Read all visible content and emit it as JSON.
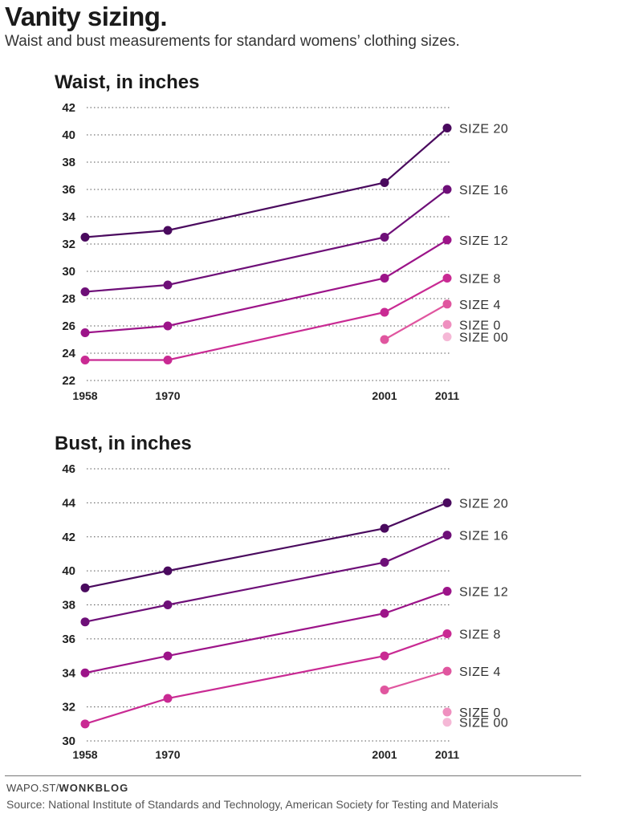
{
  "header": {
    "title": "Vanity sizing.",
    "subtitle": "Waist and bust measurements for standard womens’ clothing sizes."
  },
  "footer": {
    "credit_prefix": "WAPO.ST/",
    "credit_brand": "WONKBLOG",
    "source": "Source: National Institute of Standards and Technology, American Society for Testing and Materials"
  },
  "chart_data": [
    {
      "type": "line",
      "title": "Waist, in inches",
      "x": [
        1958,
        1970,
        2001,
        2011
      ],
      "ylim": [
        22,
        42
      ],
      "yticks": [
        22,
        24,
        26,
        28,
        30,
        32,
        34,
        36,
        38,
        40,
        42
      ],
      "grid": true,
      "legend": "direct labels at right end of lines",
      "series": [
        {
          "name": "SIZE 20",
          "color": "#4a0a5e",
          "x": [
            1958,
            1970,
            2001,
            2011
          ],
          "values": [
            32.5,
            33,
            36.5,
            40.5
          ]
        },
        {
          "name": "SIZE 16",
          "color": "#6e0f78",
          "x": [
            1958,
            1970,
            2001,
            2011
          ],
          "values": [
            28.5,
            29,
            32.5,
            36
          ]
        },
        {
          "name": "SIZE 12",
          "color": "#9c1489",
          "x": [
            1958,
            1970,
            2001,
            2011
          ],
          "values": [
            25.5,
            26,
            29.5,
            32.3
          ]
        },
        {
          "name": "SIZE 8",
          "color": "#c92a93",
          "x": [
            1958,
            1970,
            2001,
            2011
          ],
          "values": [
            23.5,
            23.5,
            27,
            29.5
          ]
        },
        {
          "name": "SIZE 4",
          "color": "#e0569f",
          "x": [
            2001,
            2011
          ],
          "values": [
            25,
            27.6
          ]
        },
        {
          "name": "SIZE 0",
          "color": "#ef8fbf",
          "x": [
            2011
          ],
          "values": [
            26.1
          ]
        },
        {
          "name": "SIZE 00",
          "color": "#f5b8d6",
          "x": [
            2011
          ],
          "values": [
            25.2
          ]
        }
      ]
    },
    {
      "type": "line",
      "title": "Bust, in inches",
      "x": [
        1958,
        1970,
        2001,
        2011
      ],
      "ylim": [
        30,
        46
      ],
      "yticks": [
        30,
        32,
        34,
        36,
        38,
        40,
        42,
        44,
        46
      ],
      "grid": true,
      "legend": "direct labels at right end of lines",
      "series": [
        {
          "name": "SIZE 20",
          "color": "#4a0a5e",
          "x": [
            1958,
            1970,
            2001,
            2011
          ],
          "values": [
            39,
            40,
            42.5,
            44
          ]
        },
        {
          "name": "SIZE 16",
          "color": "#6e0f78",
          "x": [
            1958,
            1970,
            2001,
            2011
          ],
          "values": [
            37,
            38,
            40.5,
            42.1
          ]
        },
        {
          "name": "SIZE 12",
          "color": "#9c1489",
          "x": [
            1958,
            1970,
            2001,
            2011
          ],
          "values": [
            34,
            35,
            37.5,
            38.8
          ]
        },
        {
          "name": "SIZE 8",
          "color": "#c92a93",
          "x": [
            1958,
            1970,
            2001,
            2011
          ],
          "values": [
            31,
            32.5,
            35,
            36.3
          ]
        },
        {
          "name": "SIZE 4",
          "color": "#e0569f",
          "x": [
            2001,
            2011
          ],
          "values": [
            33,
            34.1
          ]
        },
        {
          "name": "SIZE 0",
          "color": "#ef8fbf",
          "x": [
            2011
          ],
          "values": [
            31.7
          ]
        },
        {
          "name": "SIZE 00",
          "color": "#f5b8d6",
          "x": [
            2011
          ],
          "values": [
            31.1
          ]
        }
      ]
    }
  ]
}
